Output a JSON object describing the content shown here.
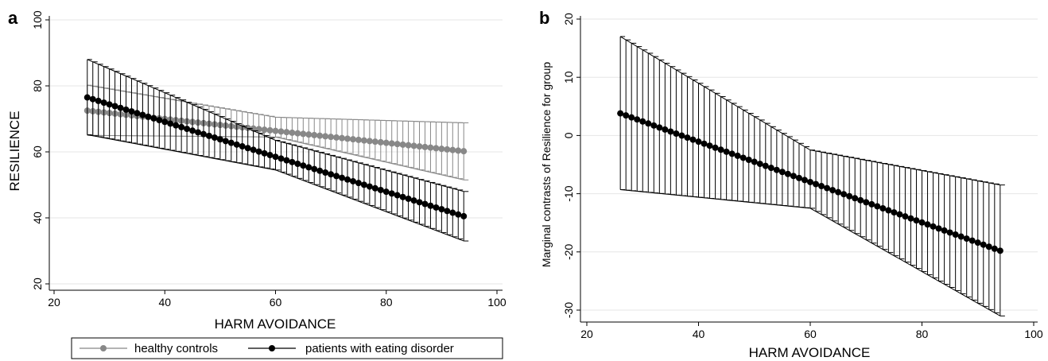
{
  "chart_data": [
    {
      "type": "line",
      "panel_label": "a",
      "xlabel": "HARM AVOIDANCE",
      "ylabel": "RESILIENCE",
      "xlim": [
        20,
        100
      ],
      "ylim": [
        20,
        100
      ],
      "xticks": [
        20,
        40,
        60,
        80,
        100
      ],
      "yticks": [
        20,
        40,
        60,
        80,
        100
      ],
      "grid": "horizontal",
      "x_range": [
        26,
        94
      ],
      "n_points": 69,
      "series": [
        {
          "name": "healthy controls",
          "color": "#888888",
          "estimate": {
            "start": 72.5,
            "end": 60.2
          },
          "ci_upper": {
            "anchors": [
              [
                26,
                80.2
              ],
              [
                60,
                70.5
              ],
              [
                94,
                68.8
              ]
            ]
          },
          "ci_lower": {
            "anchors": [
              [
                26,
                65.0
              ],
              [
                60,
                64.5
              ],
              [
                94,
                51.5
              ]
            ]
          }
        },
        {
          "name": "patients with eating disorder",
          "color": "#000000",
          "estimate": {
            "start": 76.5,
            "end": 40.5
          },
          "ci_upper": {
            "anchors": [
              [
                26,
                88.0
              ],
              [
                60,
                63.5
              ],
              [
                94,
                48.0
              ]
            ]
          },
          "ci_lower": {
            "anchors": [
              [
                26,
                65.2
              ],
              [
                60,
                54.5
              ],
              [
                94,
                33.0
              ]
            ]
          }
        }
      ],
      "legend": {
        "position": "bottom"
      }
    },
    {
      "type": "line",
      "panel_label": "b",
      "xlabel": "HARM AVOIDANCE",
      "ylabel": "Marginal contrasts of Resilience for group",
      "xlim": [
        20,
        100
      ],
      "ylim": [
        -30,
        20
      ],
      "xticks": [
        20,
        40,
        60,
        80,
        100
      ],
      "yticks": [
        -30,
        -20,
        -10,
        0,
        10,
        20
      ],
      "grid": "horizontal",
      "x_range": [
        26,
        94
      ],
      "n_points": 69,
      "series": [
        {
          "color": "#000000",
          "estimate": {
            "start": 3.8,
            "end": -19.8
          },
          "ci_upper": {
            "anchors": [
              [
                26,
                17.0
              ],
              [
                60,
                -2.5
              ],
              [
                94,
                -8.5
              ]
            ]
          },
          "ci_lower": {
            "anchors": [
              [
                26,
                -9.3
              ],
              [
                60,
                -12.5
              ],
              [
                94,
                -31.0
              ]
            ]
          }
        }
      ]
    }
  ]
}
